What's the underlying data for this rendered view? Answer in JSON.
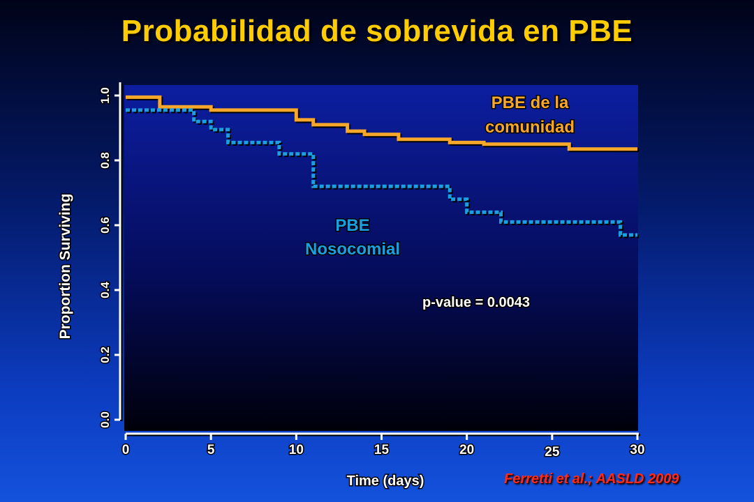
{
  "slide": {
    "title": "Probabilidad de sobrevida en PBE",
    "citation": "Ferretti et al.; AASLD 2009"
  },
  "colors": {
    "community": "#f7a82a",
    "nosocomial": "#1aa0e0",
    "title": "#ffcc00",
    "citation": "#ff2a1a"
  },
  "chart_data": {
    "type": "line",
    "subtype": "kaplan-meier-step",
    "xlabel": "Time (days)",
    "ylabel": "Proportion Surviving",
    "xlim": [
      0,
      30
    ],
    "ylim": [
      0,
      1.0
    ],
    "x_ticks": [
      0,
      5,
      10,
      15,
      20,
      25,
      30
    ],
    "x_tick_labels": [
      "0",
      "5",
      "10",
      "15",
      "20",
      "25",
      "30"
    ],
    "y_ticks": [
      0.0,
      0.2,
      0.4,
      0.6,
      0.8,
      1.0
    ],
    "y_tick_labels": [
      "0.0",
      "0.2",
      "0.4",
      "0.6",
      "0.8",
      "1.0"
    ],
    "grid": false,
    "annotation": "p-value = 0.0043",
    "series": [
      {
        "name": "PBE de la comunidad",
        "label_lines": [
          "PBE de la",
          "comunidad"
        ],
        "style": "solid",
        "color": "#f7a82a",
        "x": [
          0,
          2,
          5,
          10,
          11,
          13,
          14,
          16,
          19,
          21,
          26,
          30
        ],
        "y": [
          0.995,
          0.965,
          0.955,
          0.925,
          0.91,
          0.89,
          0.88,
          0.865,
          0.855,
          0.85,
          0.835,
          0.835
        ]
      },
      {
        "name": "PBE Nosocomial",
        "label_lines": [
          "PBE",
          "Nosocomial"
        ],
        "style": "dotted",
        "color": "#1aa0e0",
        "x": [
          0,
          4,
          5,
          6,
          9,
          11,
          19,
          20,
          22,
          29,
          30
        ],
        "y": [
          0.955,
          0.92,
          0.895,
          0.855,
          0.82,
          0.72,
          0.68,
          0.64,
          0.61,
          0.57,
          0.57
        ]
      }
    ]
  }
}
